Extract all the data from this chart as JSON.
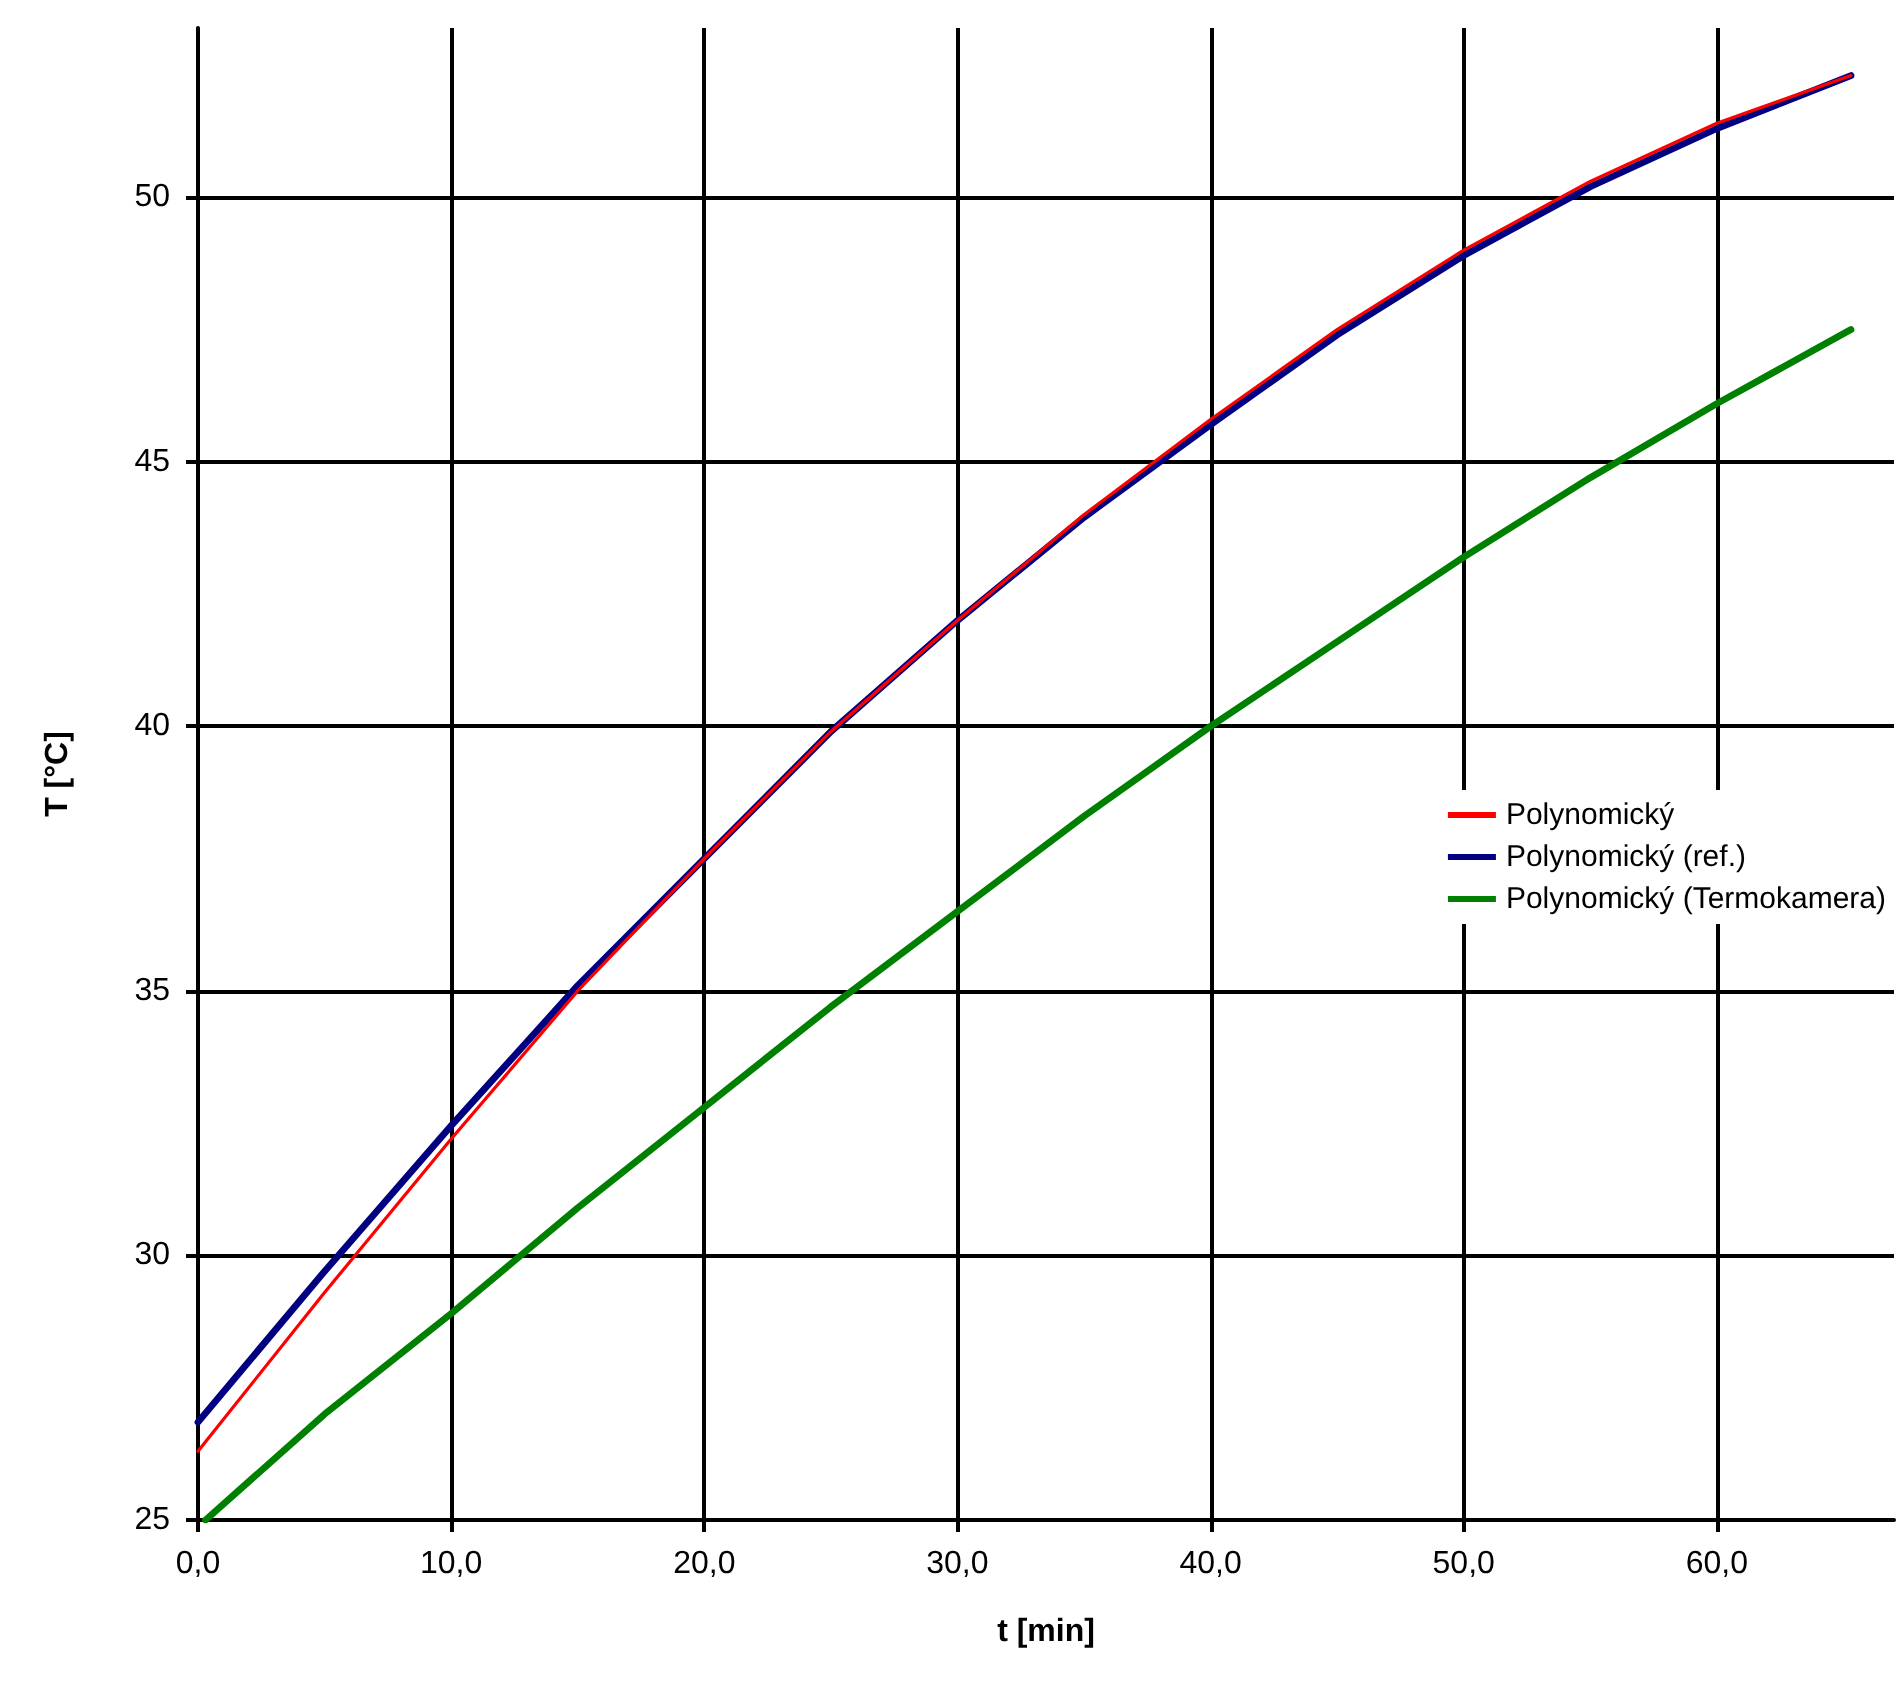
{
  "chart_data": {
    "type": "line",
    "xlabel": "t [min]",
    "ylabel": "T [°C]",
    "x": [
      0,
      5,
      10,
      15,
      20,
      25,
      30,
      35,
      40,
      45,
      50,
      55,
      60,
      65.3
    ],
    "series": [
      {
        "name": "Polynomický",
        "color": "#ff0000",
        "values": [
          26.3,
          29.3,
          32.2,
          35.0,
          37.5,
          39.9,
          42.0,
          44.0,
          45.8,
          47.5,
          49.0,
          50.3,
          51.4,
          52.3
        ]
      },
      {
        "name": "Polynomický (ref.)",
        "color": "#000080",
        "values": [
          26.85,
          29.7,
          32.45,
          35.1,
          37.5,
          39.9,
          42.0,
          43.95,
          45.7,
          47.4,
          48.9,
          50.2,
          51.3,
          52.3
        ]
      },
      {
        "name": "Polynomický (Termokamera)",
        "color": "#008000",
        "x": [
          0.3,
          5,
          10,
          15,
          20,
          25,
          30,
          35,
          40,
          45,
          50,
          55,
          60,
          65.3
        ],
        "values": [
          25.0,
          27.0,
          28.9,
          30.9,
          32.8,
          34.7,
          36.5,
          38.3,
          40.0,
          41.6,
          43.2,
          44.7,
          46.1,
          47.5
        ]
      }
    ],
    "xlim": [
      0,
      67
    ],
    "ylim": [
      25,
      53.2
    ],
    "xticks": [
      {
        "value": 0,
        "label": "0,0"
      },
      {
        "value": 10,
        "label": "10,0"
      },
      {
        "value": 20,
        "label": "20,0"
      },
      {
        "value": 30,
        "label": "30,0"
      },
      {
        "value": 40,
        "label": "40,0"
      },
      {
        "value": 50,
        "label": "50,0"
      },
      {
        "value": 60,
        "label": "60,0"
      }
    ],
    "yticks": [
      25,
      30,
      35,
      40,
      45,
      50
    ],
    "grid": true,
    "legend": "right",
    "marker": "none",
    "line_style": "solid"
  }
}
